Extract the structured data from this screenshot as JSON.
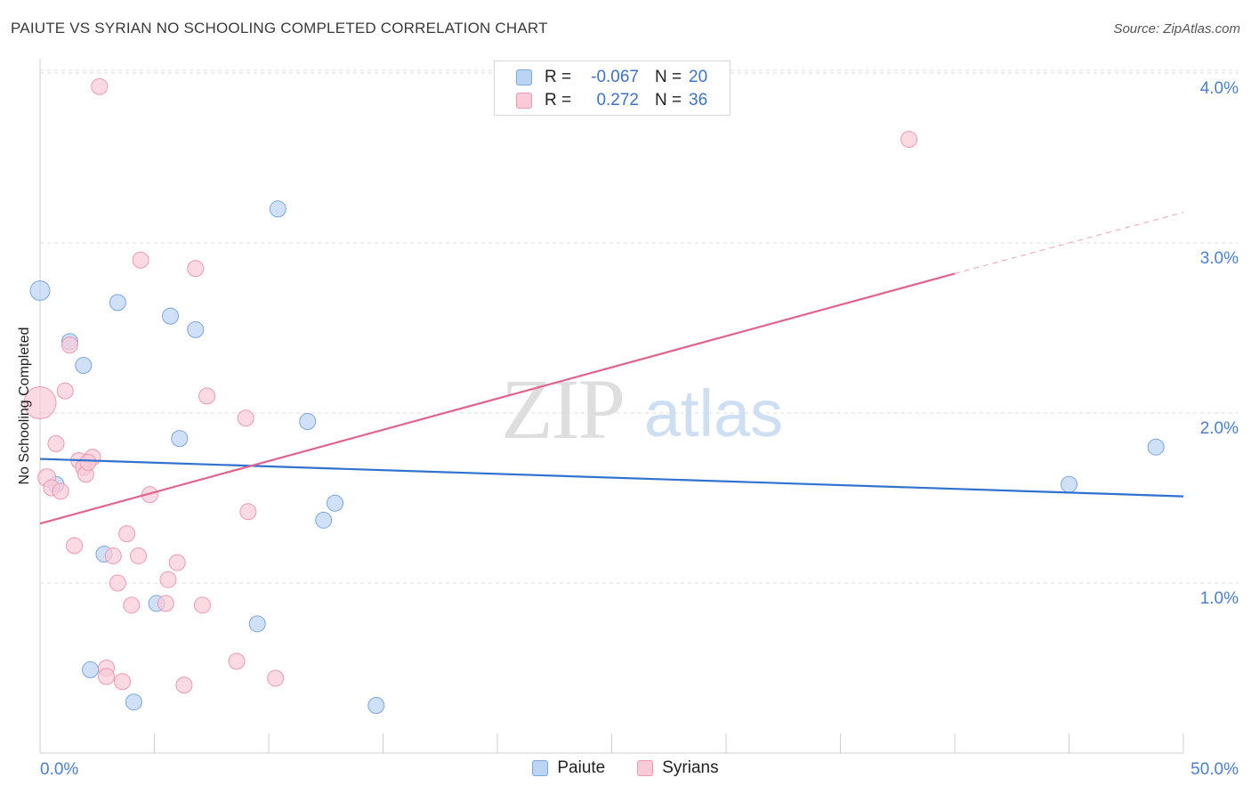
{
  "title": "PAIUTE VS SYRIAN NO SCHOOLING COMPLETED CORRELATION CHART",
  "source": "Source: ZipAtlas.com",
  "watermark": {
    "zip": "ZIP",
    "atlas": "atlas"
  },
  "legend_stats": [
    {
      "r_label": "R =",
      "r_value": "-0.067",
      "n_label": "N =",
      "n_value": "20",
      "fill": "#bcd4f4",
      "stroke": "#7aa6e0"
    },
    {
      "r_label": "R =",
      "r_value": "0.272",
      "n_label": "N =",
      "n_value": "36",
      "fill": "#f9cbd8",
      "stroke": "#ee98b2"
    }
  ],
  "chart_data": {
    "type": "scatter",
    "title": "PAIUTE VS SYRIAN NO SCHOOLING COMPLETED CORRELATION CHART",
    "ylabel": "No Schooling Completed",
    "xlabel": "",
    "xlim": [
      0,
      50
    ],
    "ylim": [
      0,
      4.0
    ],
    "x_tick_labels": [
      "0.0%",
      "50.0%"
    ],
    "y_tick_values": [
      1,
      2,
      3,
      4
    ],
    "y_tick_labels": [
      "1.0%",
      "2.0%",
      "3.0%",
      "4.0%"
    ],
    "grid": "horizontal dashed",
    "legend_position": "bottom-center",
    "series": [
      {
        "name": "Paiute",
        "color": "#7aa6e0",
        "fill": "#bcd4f4",
        "line_color": "#2f72d0",
        "trend": {
          "x0": 0,
          "y0": 1.73,
          "x1": 50,
          "y1": 1.51
        },
        "points": [
          {
            "x": 0.0,
            "y": 2.72,
            "r": 11
          },
          {
            "x": 1.3,
            "y": 2.42,
            "r": 9
          },
          {
            "x": 1.9,
            "y": 2.28,
            "r": 9
          },
          {
            "x": 3.4,
            "y": 2.65,
            "r": 9
          },
          {
            "x": 5.7,
            "y": 2.57,
            "r": 9
          },
          {
            "x": 6.8,
            "y": 2.49,
            "r": 9
          },
          {
            "x": 10.4,
            "y": 3.2,
            "r": 9
          },
          {
            "x": 11.7,
            "y": 1.95,
            "r": 9
          },
          {
            "x": 6.1,
            "y": 1.85,
            "r": 9
          },
          {
            "x": 0.7,
            "y": 1.58,
            "r": 9
          },
          {
            "x": 12.9,
            "y": 1.47,
            "r": 9
          },
          {
            "x": 12.4,
            "y": 1.37,
            "r": 9
          },
          {
            "x": 2.8,
            "y": 1.17,
            "r": 9
          },
          {
            "x": 5.1,
            "y": 0.88,
            "r": 9
          },
          {
            "x": 9.5,
            "y": 0.76,
            "r": 9
          },
          {
            "x": 2.2,
            "y": 0.49,
            "r": 9
          },
          {
            "x": 4.1,
            "y": 0.3,
            "r": 9
          },
          {
            "x": 14.7,
            "y": 0.28,
            "r": 9
          },
          {
            "x": 45.0,
            "y": 1.58,
            "r": 9
          },
          {
            "x": 48.8,
            "y": 1.8,
            "r": 9
          }
        ]
      },
      {
        "name": "Syrians",
        "color": "#ee98b2",
        "fill": "#f9cbd8",
        "line_color": "#e0648e",
        "trend": {
          "x0": 0,
          "y0": 1.35,
          "x1": 40,
          "y1": 2.82
        },
        "trend_extension": {
          "x0": 40,
          "y0": 2.82,
          "x1": 50,
          "y1": 3.18
        },
        "points": [
          {
            "x": 2.6,
            "y": 3.92,
            "r": 9
          },
          {
            "x": 38.0,
            "y": 3.61,
            "r": 9
          },
          {
            "x": 4.4,
            "y": 2.9,
            "r": 9
          },
          {
            "x": 6.8,
            "y": 2.85,
            "r": 9
          },
          {
            "x": 1.3,
            "y": 2.4,
            "r": 9
          },
          {
            "x": 0.0,
            "y": 2.06,
            "r": 18
          },
          {
            "x": 1.1,
            "y": 2.13,
            "r": 9
          },
          {
            "x": 7.3,
            "y": 2.1,
            "r": 9
          },
          {
            "x": 9.0,
            "y": 1.97,
            "r": 9
          },
          {
            "x": 0.7,
            "y": 1.82,
            "r": 9
          },
          {
            "x": 1.7,
            "y": 1.72,
            "r": 9
          },
          {
            "x": 2.3,
            "y": 1.74,
            "r": 9
          },
          {
            "x": 1.9,
            "y": 1.68,
            "r": 9
          },
          {
            "x": 2.0,
            "y": 1.64,
            "r": 9
          },
          {
            "x": 2.1,
            "y": 1.71,
            "r": 9
          },
          {
            "x": 0.3,
            "y": 1.62,
            "r": 10
          },
          {
            "x": 0.5,
            "y": 1.56,
            "r": 9
          },
          {
            "x": 0.9,
            "y": 1.54,
            "r": 9
          },
          {
            "x": 4.8,
            "y": 1.52,
            "r": 9
          },
          {
            "x": 9.1,
            "y": 1.42,
            "r": 9
          },
          {
            "x": 3.8,
            "y": 1.29,
            "r": 9
          },
          {
            "x": 1.5,
            "y": 1.22,
            "r": 9
          },
          {
            "x": 3.2,
            "y": 1.16,
            "r": 9
          },
          {
            "x": 4.3,
            "y": 1.16,
            "r": 9
          },
          {
            "x": 6.0,
            "y": 1.12,
            "r": 9
          },
          {
            "x": 5.6,
            "y": 1.02,
            "r": 9
          },
          {
            "x": 3.4,
            "y": 1.0,
            "r": 9
          },
          {
            "x": 4.0,
            "y": 0.87,
            "r": 9
          },
          {
            "x": 5.5,
            "y": 0.88,
            "r": 9
          },
          {
            "x": 7.1,
            "y": 0.87,
            "r": 9
          },
          {
            "x": 8.6,
            "y": 0.54,
            "r": 9
          },
          {
            "x": 2.9,
            "y": 0.5,
            "r": 9
          },
          {
            "x": 2.9,
            "y": 0.45,
            "r": 9
          },
          {
            "x": 3.6,
            "y": 0.42,
            "r": 9
          },
          {
            "x": 6.3,
            "y": 0.4,
            "r": 9
          },
          {
            "x": 10.3,
            "y": 0.44,
            "r": 9
          }
        ]
      }
    ]
  }
}
